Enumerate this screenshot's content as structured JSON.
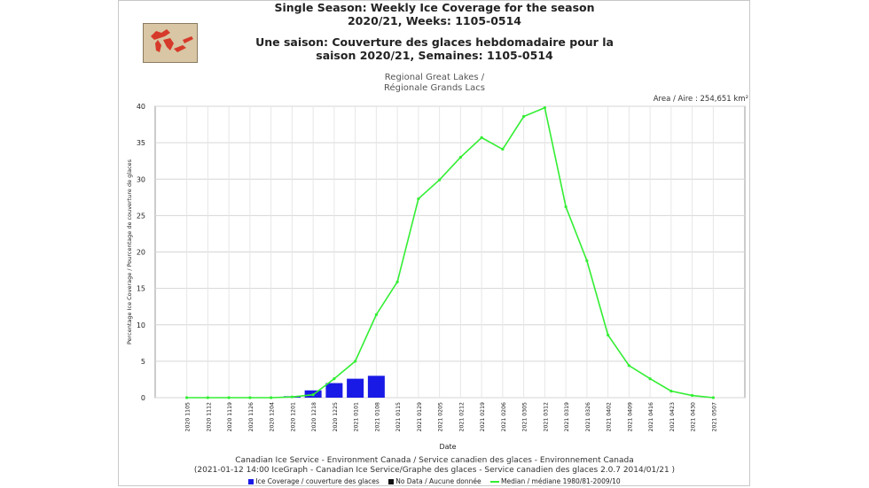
{
  "header": {
    "title_en_1": "Single Season: Weekly Ice Coverage for the season",
    "title_en_2": "2020/21, Weeks: 1105-0514",
    "title_fr_1": "Une saison: Couverture des glaces hebdomadaire pour la",
    "title_fr_2": "saison 2020/21, Semaines: 1105-0514",
    "region_1": "Regional Great Lakes /",
    "region_2": "Régionale Grands Lacs",
    "area": "Area / Aire : 254,651 km²"
  },
  "footer": {
    "line1": "Canadian Ice Service - Environment Canada / Service canadien des glaces - Environnement Canada",
    "line2": "(2021-01-12 14:00 IceGraph - Canadian Ice Service/Graphe des glaces - Service canadien des glaces 2.0.7 2014/01/21 )"
  },
  "legend": {
    "ice": "Ice Coverage / couverture des glaces",
    "nodata": "No Data / Aucune donnée",
    "median": "Median / médiane 1980/81-2009/10"
  },
  "colors": {
    "ice": "#1a1ae6",
    "median": "#33ee33",
    "nodata": "#111111",
    "grid": "#d6d6d6"
  },
  "chart_data": {
    "type": "bar",
    "xlabel": "Date",
    "ylabel": "Percentage Ice Coverage / Pourcentage de couverture de glaces",
    "ylim": [
      0,
      40
    ],
    "yticks": [
      0,
      5,
      10,
      15,
      20,
      25,
      30,
      35,
      40
    ],
    "grid": true,
    "legend_position": "bottom",
    "categories": [
      "2020 1105",
      "2020 1112",
      "2020 1119",
      "2020 1126",
      "2020 1204",
      "2020 1201",
      "2020 1218",
      "2020 1225",
      "2021 0101",
      "2021 0108",
      "2021 0115",
      "2021 0129",
      "2021 0205",
      "2021 0212",
      "2021 0219",
      "2021 0206",
      "2021 0305",
      "2021 0312",
      "2021 0319",
      "2021 0326",
      "2021 0402",
      "2021 0409",
      "2021 0416",
      "2021 0423",
      "2021 0430",
      "2021 0507"
    ],
    "series": [
      {
        "name": "Ice Coverage / couverture des glaces",
        "type": "bar",
        "values": [
          null,
          null,
          null,
          null,
          null,
          0.2,
          1.0,
          2.0,
          2.6,
          3.0,
          null,
          null,
          null,
          null,
          null,
          null,
          null,
          null,
          null,
          null,
          null,
          null,
          null,
          null,
          null,
          null
        ]
      },
      {
        "name": "Median / médiane 1980/81-2009/10",
        "type": "line",
        "values": [
          0.0,
          0.0,
          0.0,
          0.0,
          0.0,
          0.1,
          0.4,
          2.6,
          5.0,
          11.4,
          15.9,
          27.3,
          29.9,
          33.0,
          35.7,
          34.1,
          38.6,
          39.8,
          26.2,
          18.8,
          8.6,
          4.4,
          2.6,
          0.9,
          0.3,
          0.0
        ]
      }
    ]
  }
}
